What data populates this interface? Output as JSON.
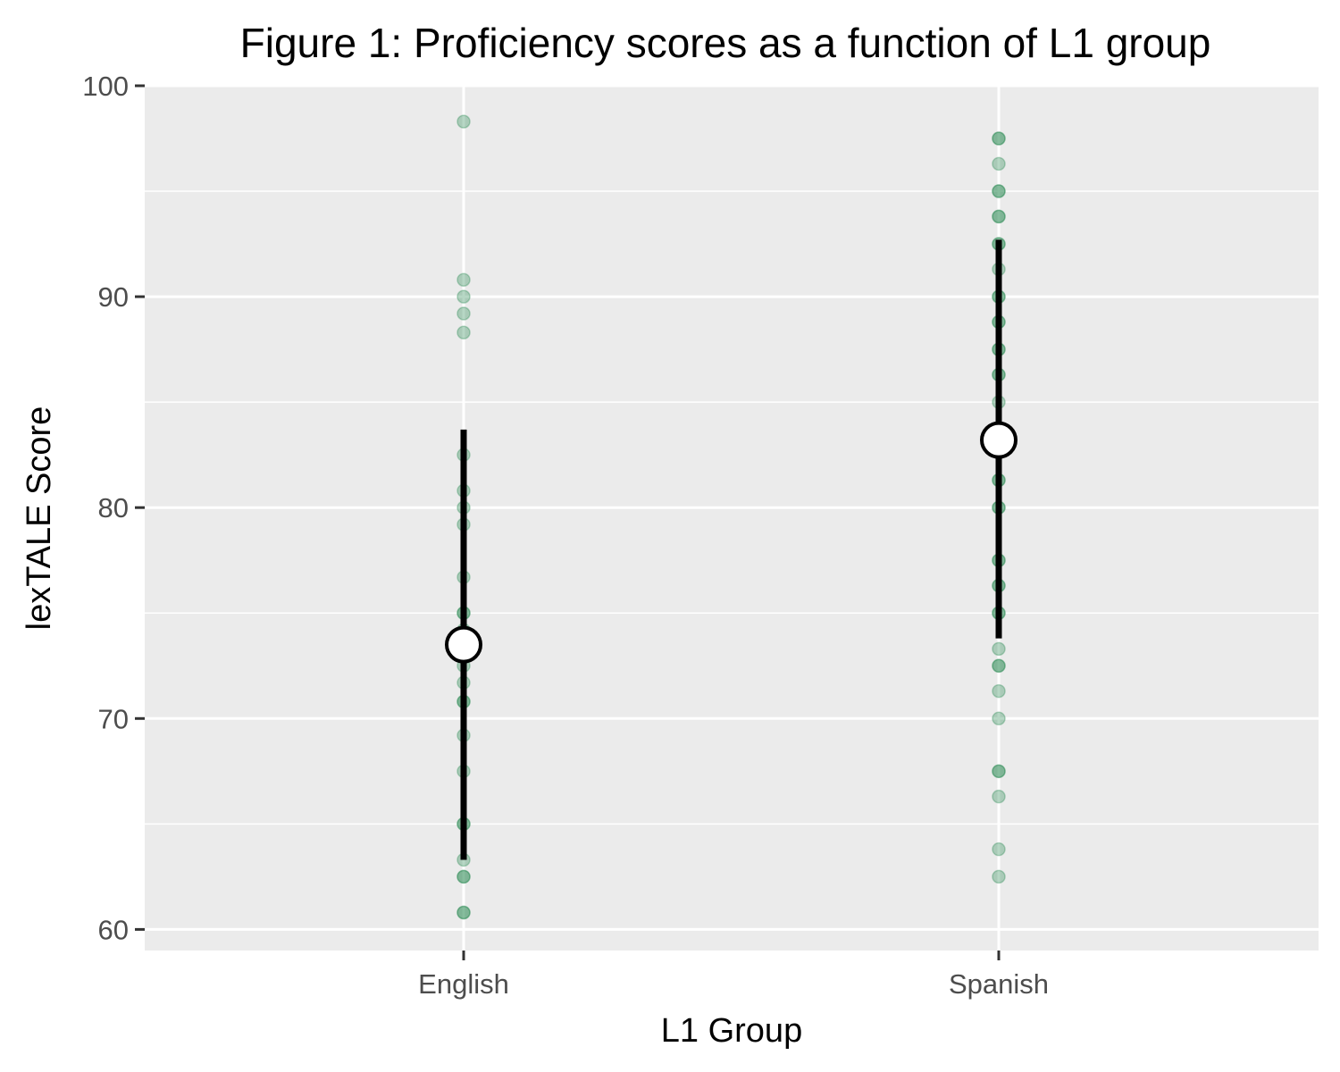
{
  "chart_data": {
    "type": "scatter",
    "title": "Figure 1: Proficiency scores as a function of L1 group",
    "xlabel": "L1 Group",
    "ylabel": "lexTALE Score",
    "categories": [
      "English",
      "Spanish"
    ],
    "ylim": [
      59,
      100
    ],
    "yticks": [
      60,
      70,
      80,
      90,
      100
    ],
    "grid": true,
    "point_color": "#2e8b57",
    "summary_color": "#000000",
    "mean_fill": "#ffffff",
    "panel_color": "#ebebeb",
    "series": [
      {
        "category": "English",
        "points": [
          98.3,
          90.8,
          90.0,
          89.2,
          88.3,
          82.5,
          80.8,
          80.0,
          79.2,
          76.7,
          75.0,
          75.0,
          74.2,
          73.3,
          72.5,
          71.7,
          70.8,
          70.8,
          69.2,
          67.5,
          65.0,
          65.0,
          63.3,
          62.5,
          62.5,
          60.8,
          60.8
        ],
        "mean": 73.5,
        "lower": 63.3,
        "upper": 83.7
      },
      {
        "category": "Spanish",
        "points": [
          97.5,
          97.5,
          96.3,
          95.0,
          95.0,
          93.8,
          93.8,
          92.5,
          92.5,
          91.3,
          90.0,
          90.0,
          88.8,
          88.8,
          87.5,
          87.5,
          86.3,
          86.3,
          85.0,
          81.3,
          81.3,
          80.0,
          80.0,
          77.5,
          77.5,
          76.3,
          76.3,
          75.0,
          75.0,
          73.3,
          72.5,
          72.5,
          71.3,
          70.0,
          67.5,
          67.5,
          66.3,
          63.8,
          62.5
        ],
        "mean": 83.2,
        "lower": 73.8,
        "upper": 92.7
      }
    ]
  }
}
